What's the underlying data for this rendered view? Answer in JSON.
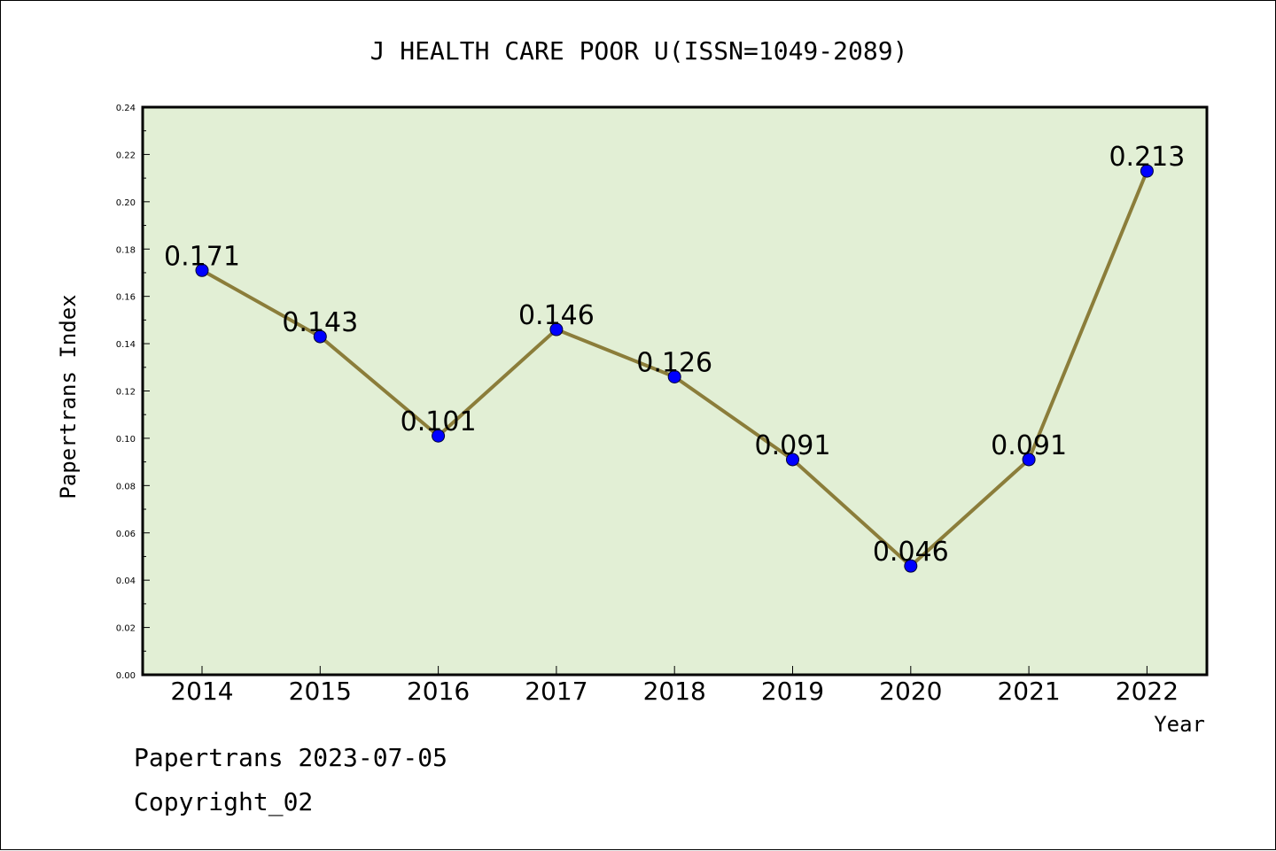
{
  "chart_data": {
    "type": "line",
    "title": "J HEALTH CARE POOR U(ISSN=1049-2089)",
    "xlabel": "Year",
    "ylabel": "Papertrans Index",
    "categories": [
      "2014",
      "2015",
      "2016",
      "2017",
      "2018",
      "2019",
      "2020",
      "2021",
      "2022"
    ],
    "values": [
      0.171,
      0.143,
      0.101,
      0.146,
      0.126,
      0.091,
      0.046,
      0.091,
      0.213
    ],
    "data_labels": [
      "0.171",
      "0.143",
      "0.101",
      "0.146",
      "0.126",
      "0.091",
      "0.046",
      "0.091",
      "0.213"
    ],
    "ylim": [
      0,
      0.24
    ],
    "yticks": [
      "0.00",
      "0.02",
      "0.04",
      "0.06",
      "0.08",
      "0.10",
      "0.12",
      "0.14",
      "0.16",
      "0.18",
      "0.20",
      "0.22",
      "0.24"
    ],
    "grid": false,
    "colors": {
      "plot_background": "#e2efd5",
      "line": "#8b7d3a",
      "marker": "#0000ff"
    }
  },
  "footer": {
    "line1": "Papertrans 2023-07-05",
    "line2": "Copyright_02"
  }
}
